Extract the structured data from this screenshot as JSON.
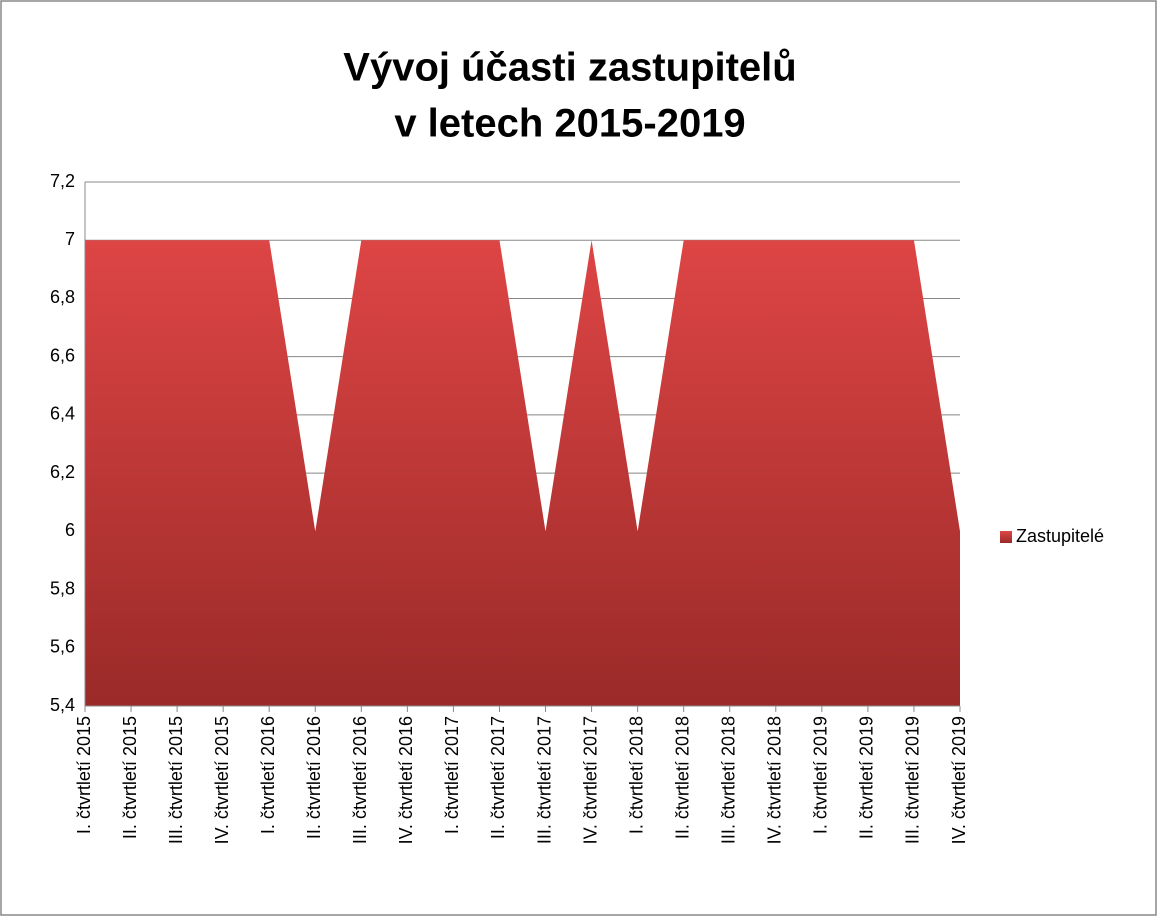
{
  "chart_data": {
    "type": "area",
    "title": [
      "Vývoj účasti zastupitelů",
      "v letech 2015-2019"
    ],
    "categories": [
      "I. čtvrtletí 2015",
      "II. čtvrtletí 2015",
      "III. čtvrtletí 2015",
      "IV. čtvrtletí 2015",
      "I. čtvrtletí 2016",
      "II. čtvrtletí 2016",
      "III. čtvrtletí 2016",
      "IV. čtvrtletí 2016",
      "I. čtvrtletí 2017",
      "II. čtvrtletí 2017",
      "III. čtvrtletí 2017",
      "IV. čtvrtletí 2017",
      "I. čtvrtletí 2018",
      "II. čtvrtletí 2018",
      "III. čtvrtletí 2018",
      "IV. čtvrtletí 2018",
      "I. čtvrtletí 2019",
      "II. čtvrtletí 2019",
      "III. čtvrtletí 2019",
      "IV. čtvrtletí 2019"
    ],
    "series": [
      {
        "name": "Zastupitelé",
        "color": "#c0392b",
        "values": [
          7,
          7,
          7,
          7,
          7,
          6,
          7,
          7,
          7,
          7,
          6,
          7,
          6,
          7,
          7,
          7,
          7,
          7,
          7,
          6
        ]
      }
    ],
    "ylim": [
      5.4,
      7.2
    ],
    "yticks": [
      {
        "value": 5.4,
        "label": "5,4"
      },
      {
        "value": 5.6,
        "label": "5,6"
      },
      {
        "value": 5.8,
        "label": "5,8"
      },
      6,
      {
        "value": 6.2,
        "label": "6,2"
      },
      {
        "value": 6.4,
        "label": "6,4"
      },
      {
        "value": 6.6,
        "label": "6,6"
      },
      {
        "value": 6.8,
        "label": "6,8"
      },
      7,
      {
        "value": 7.2,
        "label": "7,2"
      }
    ],
    "grid": true,
    "legend": "right"
  }
}
